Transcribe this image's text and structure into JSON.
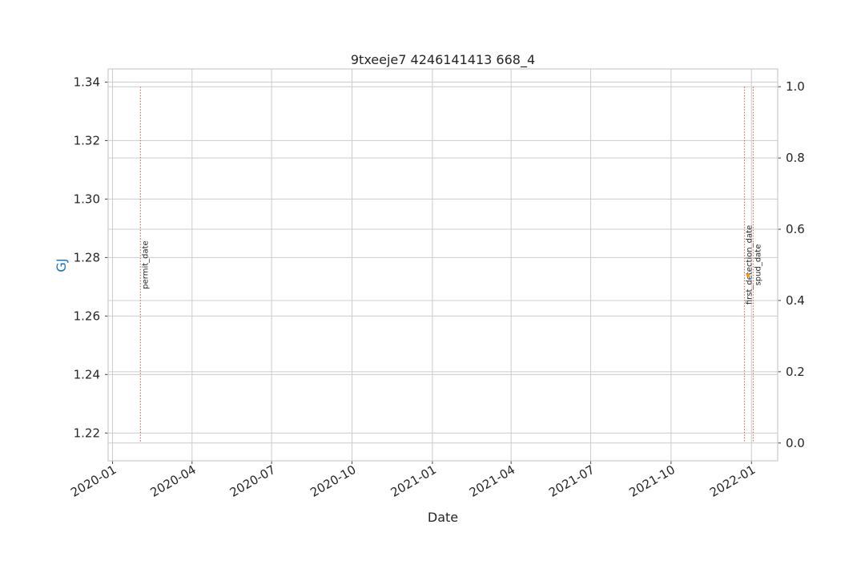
{
  "chart_data": {
    "type": "line",
    "title": "9txeeje7 4246141413 668_4",
    "xlabel": "Date",
    "ylabel": "GJ",
    "x_ticks": [
      "2020-01",
      "2020-04",
      "2020-07",
      "2020-10",
      "2021-01",
      "2021-04",
      "2021-07",
      "2021-10",
      "2022-01"
    ],
    "xlim": [
      "2019-12-27",
      "2022-01-31"
    ],
    "y_left": {
      "ticks": [
        "1.22",
        "1.24",
        "1.26",
        "1.28",
        "1.30",
        "1.32",
        "1.34"
      ],
      "lim": [
        1.2105,
        1.3445
      ]
    },
    "y_right": {
      "ticks": [
        "0.0",
        "0.2",
        "0.4",
        "0.6",
        "0.8",
        "1.0"
      ],
      "lim": [
        -0.05,
        1.05
      ]
    },
    "grid": true,
    "series": [
      {
        "values": [
          {
            "x": "2021-12-28",
            "y": 1.274
          }
        ],
        "color": "#ff9900"
      }
    ],
    "events": [
      {
        "label": "permit_date",
        "date": "2020-02-02",
        "color": "#d0735e"
      },
      {
        "label": "first_detection_date",
        "date": "2021-12-24",
        "color": "#d0735e"
      },
      {
        "label": "spud_date",
        "date": "2022-01-03",
        "color": "#d0735e"
      }
    ],
    "colors": {
      "ylabel": "#1f77b4",
      "grid": "#cccccc",
      "axes": "#cccccc"
    }
  }
}
